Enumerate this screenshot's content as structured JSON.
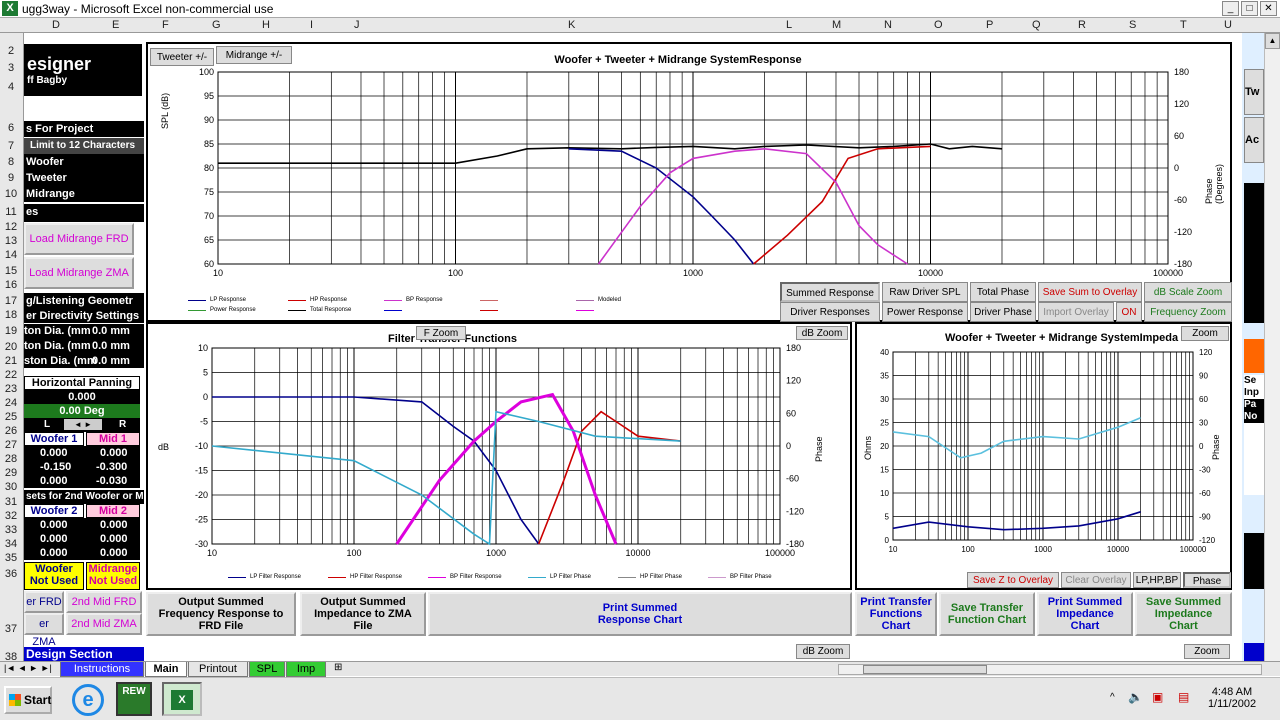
{
  "window": {
    "title": "ugg3way - Microsoft Excel non-commercial use"
  },
  "columns": [
    "D",
    "E",
    "F",
    "G",
    "H",
    "I",
    "J",
    "K",
    "L",
    "M",
    "N",
    "O",
    "P",
    "Q",
    "R",
    "S",
    "T",
    "U"
  ],
  "rows": [
    "2",
    "3",
    "4",
    "6",
    "7",
    "8",
    "9",
    "10",
    "11",
    "12",
    "13",
    "14",
    "15",
    "16",
    "17",
    "18",
    "19",
    "20",
    "21",
    "22",
    "23",
    "24",
    "25",
    "26",
    "27",
    "28",
    "29",
    "30",
    "31",
    "32",
    "33",
    "34",
    "35",
    "36",
    "37",
    "38"
  ],
  "left": {
    "designer": "esigner",
    "author": "ff Bagby",
    "for_project": "s For Project",
    "limit": "Limit to 12 Characters",
    "woofer": "Woofer",
    "tweeter": "Tweeter",
    "midrange": "Midrange",
    "es": "es",
    "load_mid_frd": "Load Midrange FRD",
    "load_mid_zma": "Load Midrange ZMA",
    "geometry": "g/Listening Geometr",
    "directivity": "er Directivity Settings",
    "dia1_label": "ton Dia. (mm",
    "dia1_val": "0.0 mm",
    "dia2_label": "ton Dia. (mm",
    "dia2_val": "0.0 mm",
    "dia3_label": "ston Dia. (mm",
    "dia3_val": "0.0 mm",
    "horiz_panning": "Horizontal Panning",
    "pan_val": "0.000",
    "pan_deg": "0.00 Deg",
    "L": "L",
    "R": "R",
    "woofer1": "Woofer 1",
    "mid1": "Mid 1",
    "w1_a": "0.000",
    "m1_a": "0.000",
    "w1_b": "-0.150",
    "m1_b": "-0.300",
    "w1_c": "0.000",
    "m1_c": "-0.030",
    "sets2": "sets for 2nd Woofer or M",
    "woofer2": "Woofer 2",
    "mid2": "Mid 2",
    "w2_a": "0.000",
    "m2_a": "0.000",
    "w2_b": "0.000",
    "m2_b": "0.000",
    "w2_c": "0.000",
    "m2_c": "0.000",
    "woofer_nu": "Woofer",
    "woofer_nu2": "Not Used",
    "mid_nu": "Midrange",
    "mid_nu2": "Not Used",
    "er_frd": "er FRD",
    "mid2_frd": "2nd Mid FRD",
    "er_zma": "er ZMA",
    "mid2_zma": "2nd Mid ZMA",
    "design_section": "Design Section"
  },
  "top_chart": {
    "tab_tweeter": "Tweeter +/-",
    "tab_midrange": "Midrange  +/-",
    "title": "Woofer + Tweeter + Midrange  SystemResponse",
    "ylabel": "SPL (dB)",
    "y2label": "Phase (Degrees)",
    "legend": [
      "LP Response",
      "HP Response",
      "BP Response",
      "",
      "Modeled",
      "Power Response",
      "Total Response",
      "",
      "",
      ""
    ]
  },
  "sys_buttons": {
    "summed": "Summed Response",
    "raw": "Raw Driver SPL",
    "total_phase": "Total Phase",
    "save_sum": "Save Sum to Overlay",
    "db_scale": "dB Scale Zoom",
    "driver_resp": "Driver Responses",
    "power": "Power Response",
    "driver_phase": "Driver Phase",
    "import_overlay": "Import Overlay",
    "on": "ON",
    "freq_zoom": "Frequency Zoom"
  },
  "filter_chart": {
    "title": "Filter Transfer Functions",
    "fzoom": "F Zoom",
    "dbzoom": "dB Zoom",
    "ylabel": "dB",
    "y2label": "Phase",
    "legend": [
      "LP Filter Response",
      "HP Filter Response",
      "BP Filter Response",
      "LP Filter Phase",
      "HP Filter Phase",
      "BP Filter Phase"
    ]
  },
  "imp_chart": {
    "title": "Woofer + Tweeter + Midrange  SystemImpeda",
    "zoom": "Zoom",
    "ylabel": "Ohms",
    "y2label": "Phase",
    "save_z": "Save Z to Overlay",
    "clear": "Clear Overlay",
    "lphpbp": "LP,HP,BP",
    "phase": "Phase"
  },
  "bottom_buttons": {
    "out_frd": "Output Summed Frequency Response to FRD File",
    "out_zma": "Output Summed Impedance to ZMA File",
    "print_resp": "Print Summed Response Chart",
    "print_tf": "Print Transfer Functions Chart",
    "save_tf": "Save Transfer Function Chart",
    "print_imp": "Print Summed Impedance Chart",
    "save_imp": "Save Summed Impedance Chart",
    "dbzoom": "dB Zoom",
    "zoom": "Zoom"
  },
  "right": {
    "tw": "Tw",
    "ac": "Ac",
    "se": "Se",
    "inp": "Inp",
    "pa": "Pa",
    "no": "No"
  },
  "sheet_tabs": [
    "Instructions",
    "Main",
    "Printout",
    "SPL",
    "Imp"
  ],
  "taskbar": {
    "start": "Start",
    "rew": "REW",
    "time": "4:48 AM",
    "date": "1/11/2002"
  },
  "chart_data": [
    {
      "type": "line",
      "title": "Woofer + Tweeter + Midrange  SystemResponse",
      "xscale": "log",
      "xlim": [
        10,
        100000
      ],
      "ylim": [
        60,
        100
      ],
      "y2lim": [
        -180,
        180
      ],
      "ylabel": "SPL (dB)",
      "y2label": "Phase (Degrees)",
      "xticks": [
        "10",
        "100",
        "1000",
        "10000",
        "100000"
      ],
      "yticks": [
        "100",
        "95",
        "90",
        "85",
        "80",
        "75",
        "70",
        "65",
        "60"
      ],
      "y2ticks": [
        "180",
        "120",
        "60",
        "0",
        "-60",
        "-120",
        "-180"
      ],
      "series": [
        {
          "color": "#000000",
          "x": [
            10,
            30,
            100,
            150,
            200,
            300,
            500,
            700,
            1000,
            1500,
            2000,
            3000,
            5000,
            7000,
            10000,
            12000,
            15000,
            20000
          ],
          "y": [
            81,
            81,
            81,
            82.5,
            84,
            84.2,
            84,
            84.3,
            84.5,
            84,
            84.5,
            84.8,
            84.2,
            84.5,
            85,
            84,
            84.5,
            84
          ]
        },
        {
          "color": "#00008b",
          "x": [
            300,
            500,
            700,
            1000,
            1200,
            1500,
            1800
          ],
          "y": [
            84,
            83.5,
            80,
            74,
            70,
            65,
            60
          ]
        },
        {
          "color": "#cc0000",
          "x": [
            1800,
            2500,
            3500,
            4500,
            6000,
            8000,
            10000
          ],
          "y": [
            60,
            66,
            73,
            82,
            84,
            84.3,
            84.5
          ]
        },
        {
          "color": "#cc33cc",
          "x": [
            400,
            600,
            800,
            1000,
            1500,
            2000,
            3000,
            4000,
            5000,
            6000,
            8000
          ],
          "y": [
            60,
            72,
            79,
            82,
            83.5,
            84,
            83,
            77,
            68,
            64,
            60
          ]
        }
      ]
    },
    {
      "type": "line",
      "title": "Filter Transfer Functions",
      "xscale": "log",
      "xlim": [
        10,
        100000
      ],
      "ylim": [
        -30,
        10
      ],
      "y2lim": [
        -180,
        180
      ],
      "ylabel": "dB",
      "y2label": "Phase",
      "xticks": [
        "10",
        "100",
        "1000",
        "10000",
        "100000"
      ],
      "yticks": [
        "10",
        "5",
        "0",
        "-5",
        "-10",
        "-15",
        "-20",
        "-25",
        "-30"
      ],
      "y2ticks": [
        "180",
        "120",
        "60",
        "0",
        "-60",
        "-120",
        "-180"
      ],
      "series": [
        {
          "color": "#00008b",
          "x": [
            10,
            100,
            300,
            500,
            700,
            1000,
            1500,
            2000
          ],
          "y": [
            0,
            0,
            -1,
            -6,
            -9,
            -15,
            -25,
            -30
          ]
        },
        {
          "color": "#cc0000",
          "x": [
            2000,
            3000,
            4000,
            5500,
            7000,
            10000,
            20000
          ],
          "y": [
            -30,
            -17,
            -7,
            -3,
            -5,
            -8,
            -9
          ]
        },
        {
          "color": "#dd00dd",
          "x": [
            200,
            400,
            700,
            1000,
            1500,
            2500,
            3500,
            5000,
            7000
          ],
          "y": [
            -30,
            -17,
            -9,
            -5,
            -1,
            0.5,
            -7,
            -20,
            -30
          ]
        },
        {
          "color": "#33aacc",
          "x": [
            10,
            100,
            300,
            700,
            900,
            1000,
            2000,
            5000,
            20000
          ],
          "y": [
            -10,
            -13,
            -20,
            -28,
            -30,
            -3,
            -5,
            -8,
            -9
          ]
        }
      ]
    },
    {
      "type": "line",
      "title": "Woofer + Tweeter + Midrange  SystemImpeda",
      "xscale": "log",
      "xlim": [
        10,
        100000
      ],
      "ylim": [
        0,
        40
      ],
      "y2lim": [
        -120,
        120
      ],
      "ylabel": "Ohms",
      "y2label": "Phase",
      "xticks": [
        "10",
        "100",
        "1000",
        "10000",
        "100000"
      ],
      "yticks": [
        "40",
        "35",
        "30",
        "25",
        "20",
        "15",
        "10",
        "5",
        "0"
      ],
      "y2ticks": [
        "120",
        "90",
        "60",
        "30",
        "0",
        "-30",
        "-60",
        "-90",
        "-120"
      ],
      "series": [
        {
          "color": "#00008b",
          "x": [
            10,
            30,
            100,
            300,
            1000,
            3000,
            10000,
            20000
          ],
          "y": [
            2.5,
            3.8,
            2.8,
            2.2,
            2.5,
            3,
            4.5,
            6
          ]
        },
        {
          "color": "#5bc0de",
          "x": [
            10,
            30,
            80,
            150,
            300,
            1000,
            3000,
            10000,
            20000
          ],
          "y": [
            23,
            22,
            17.5,
            18.5,
            21,
            22,
            21.5,
            24,
            26
          ]
        }
      ]
    }
  ]
}
